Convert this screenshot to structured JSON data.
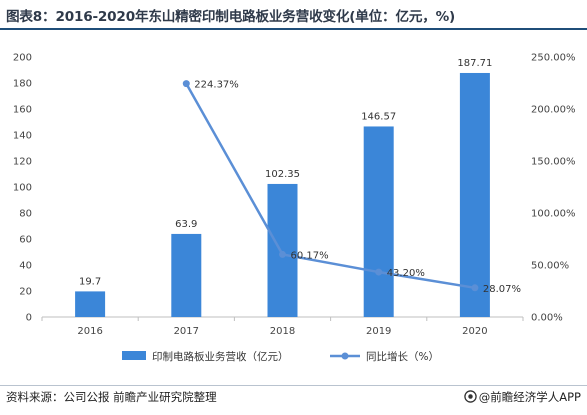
{
  "title": "图表8：2016-2020年东山精密印制电路板业务营收变化(单位：亿元，%)",
  "footer": {
    "source": "资料来源：公司公报 前瞻产业研究院整理",
    "brand": "@前瞻经济学人APP"
  },
  "colors": {
    "bar": "#3b86d8",
    "line": "#5b8fd6",
    "title_rule": "#1f4e79"
  },
  "chart_data": {
    "type": "bar+line",
    "title": "图表8：2016-2020年东山精密印制电路板业务营收变化(单位：亿元，%)",
    "categories": [
      "2016",
      "2017",
      "2018",
      "2019",
      "2020"
    ],
    "series": [
      {
        "name": "印制电路板业务营收（亿元）",
        "type": "bar",
        "axis": "left",
        "values": [
          19.7,
          63.9,
          102.35,
          146.57,
          187.71
        ],
        "labels": [
          "19.7",
          "63.9",
          "102.35",
          "146.57",
          "187.71"
        ]
      },
      {
        "name": "同比增长（%）",
        "type": "line",
        "axis": "right",
        "values": [
          null,
          224.37,
          60.17,
          43.2,
          28.07
        ],
        "labels": [
          null,
          "224.37%",
          "60.17%",
          "43.20%",
          "28.07%"
        ]
      }
    ],
    "y_left": {
      "ylim": [
        0,
        200
      ],
      "ticks": [
        "0",
        "20",
        "40",
        "60",
        "80",
        "100",
        "120",
        "140",
        "160",
        "180",
        "200"
      ]
    },
    "y_right": {
      "ylim": [
        0,
        250
      ],
      "ticks": [
        "0.00%",
        "50.00%",
        "100.00%",
        "150.00%",
        "200.00%",
        "250.00%"
      ]
    },
    "grid": false,
    "legend": "bottom"
  }
}
